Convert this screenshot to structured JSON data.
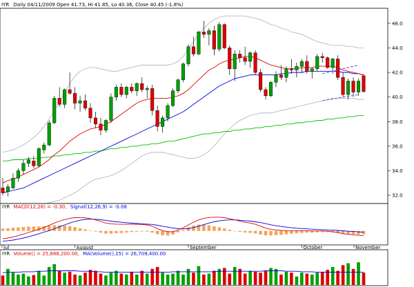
{
  "header": {
    "symbol": "IYR",
    "info": "Daily 04/11/2009 Open 41.73, Hi 41.85, Lo 40.36, Close 40.45 (-1.8%)"
  },
  "macd_legend": {
    "symbol": "IYR",
    "macd_text": "MACD(12,26) = -0.30,",
    "signal_text": "Signal(12,26,9) = -0.08"
  },
  "volume_legend": {
    "symbol": "IYR",
    "vol_text": "Volume() = 25,888,200.00,",
    "ma_text": "MA(Volume(),15) = 26,709,400.00"
  },
  "colors": {
    "up": "#00a000",
    "down": "#e00000",
    "ma_fast": "#e00000",
    "ma_mid": "#0000e0",
    "ma_slow": "#00c000",
    "band": "#b0b0b0",
    "macd_hist": "#f4a460",
    "trendline": "#6a5acd"
  },
  "chart_data": [
    {
      "type": "candlestick",
      "title": "",
      "ylim": [
        31.5,
        47.0
      ],
      "y_ticks": [
        "32.0",
        "34.0",
        "36.0",
        "38.0",
        "40.0",
        "42.0",
        "44.0",
        "46.0"
      ],
      "x_ticks": [
        "Jul",
        "August",
        "September",
        "October",
        "November"
      ],
      "x_tick_index": [
        0,
        14,
        36,
        58,
        80
      ],
      "candles": [
        [
          32.6,
          33.4,
          32.0,
          32.2
        ],
        [
          32.3,
          32.9,
          31.9,
          32.7
        ],
        [
          32.6,
          33.8,
          32.5,
          33.4
        ],
        [
          33.4,
          34.2,
          33.1,
          34.0
        ],
        [
          34.0,
          34.9,
          33.7,
          34.6
        ],
        [
          34.6,
          35.1,
          34.3,
          34.9
        ],
        [
          34.8,
          35.2,
          34.2,
          34.4
        ],
        [
          34.4,
          35.9,
          34.3,
          35.8
        ],
        [
          35.7,
          36.3,
          35.4,
          36.1
        ],
        [
          36.1,
          38.1,
          36.0,
          37.9
        ],
        [
          37.9,
          40.1,
          37.8,
          39.9
        ],
        [
          39.9,
          40.8,
          39.2,
          39.4
        ],
        [
          39.4,
          40.7,
          39.1,
          40.6
        ],
        [
          40.6,
          42.0,
          40.2,
          40.3
        ],
        [
          40.3,
          40.8,
          39.0,
          39.5
        ],
        [
          39.5,
          40.1,
          38.8,
          39.7
        ],
        [
          39.7,
          40.2,
          38.9,
          39.1
        ],
        [
          39.1,
          39.5,
          37.9,
          38.3
        ],
        [
          38.3,
          38.8,
          37.5,
          37.8
        ],
        [
          37.8,
          38.3,
          36.9,
          37.3
        ],
        [
          37.3,
          38.2,
          37.1,
          38.1
        ],
        [
          38.1,
          40.3,
          37.9,
          40.0
        ],
        [
          40.0,
          41.0,
          39.7,
          40.8
        ],
        [
          40.8,
          41.1,
          40.0,
          40.2
        ],
        [
          40.2,
          40.9,
          39.9,
          40.8
        ],
        [
          40.8,
          41.1,
          40.3,
          40.5
        ],
        [
          40.5,
          41.2,
          40.1,
          41.1
        ],
        [
          41.1,
          41.6,
          40.4,
          40.6
        ],
        [
          40.6,
          40.9,
          39.9,
          40.7
        ],
        [
          40.7,
          41.0,
          38.5,
          38.9
        ],
        [
          38.9,
          39.3,
          37.2,
          37.6
        ],
        [
          37.6,
          38.5,
          37.1,
          38.3
        ],
        [
          38.3,
          39.5,
          38.0,
          39.3
        ],
        [
          39.3,
          40.7,
          39.2,
          40.5
        ],
        [
          40.5,
          41.5,
          40.3,
          41.4
        ],
        [
          41.4,
          42.8,
          41.2,
          42.7
        ],
        [
          42.7,
          44.3,
          42.5,
          44.1
        ],
        [
          44.1,
          44.9,
          43.3,
          43.5
        ],
        [
          43.5,
          45.4,
          43.4,
          45.3
        ],
        [
          45.3,
          46.2,
          44.8,
          45.1
        ],
        [
          45.1,
          45.6,
          44.2,
          45.4
        ],
        [
          45.4,
          45.8,
          43.4,
          43.9
        ],
        [
          43.9,
          46.1,
          43.7,
          45.9
        ],
        [
          45.9,
          46.0,
          43.9,
          44.0
        ],
        [
          44.0,
          44.2,
          41.8,
          42.3
        ],
        [
          42.3,
          43.8,
          41.3,
          43.5
        ],
        [
          43.5,
          43.8,
          42.8,
          43.2
        ],
        [
          43.2,
          44.1,
          42.6,
          42.9
        ],
        [
          42.9,
          43.7,
          42.4,
          43.6
        ],
        [
          43.6,
          43.8,
          41.8,
          42.0
        ],
        [
          42.0,
          42.3,
          40.4,
          40.6
        ],
        [
          40.6,
          40.8,
          39.8,
          40.1
        ],
        [
          40.1,
          41.3,
          40.0,
          41.2
        ],
        [
          41.2,
          42.1,
          40.8,
          41.8
        ],
        [
          41.8,
          42.6,
          41.4,
          41.6
        ],
        [
          41.6,
          42.5,
          41.2,
          42.3
        ],
        [
          42.3,
          43.1,
          41.9,
          42.2
        ],
        [
          42.2,
          42.8,
          41.6,
          42.5
        ],
        [
          42.5,
          43.1,
          42.0,
          42.9
        ],
        [
          42.9,
          43.4,
          41.9,
          42.1
        ],
        [
          42.1,
          42.4,
          41.5,
          42.3
        ],
        [
          42.3,
          43.5,
          42.1,
          43.3
        ],
        [
          43.3,
          43.6,
          42.8,
          43.2
        ],
        [
          43.2,
          43.3,
          42.3,
          42.4
        ],
        [
          42.4,
          43.2,
          41.9,
          43.1
        ],
        [
          43.1,
          43.4,
          41.4,
          41.6
        ],
        [
          41.6,
          42.0,
          40.0,
          40.2
        ],
        [
          40.2,
          41.5,
          39.8,
          41.3
        ],
        [
          41.3,
          41.6,
          40.0,
          40.4
        ],
        [
          40.4,
          41.5,
          40.1,
          41.3
        ],
        [
          41.73,
          41.85,
          40.36,
          40.45
        ]
      ],
      "trendline_upper": [
        [
          62,
          41.9
        ],
        [
          69,
          42.6
        ]
      ],
      "trendline_lower": [
        [
          62,
          39.7
        ],
        [
          69,
          40.2
        ]
      ],
      "ma_fast": [
        33.0,
        33.2,
        33.3,
        33.5,
        33.7,
        33.9,
        34.1,
        34.3,
        34.6,
        34.9,
        35.3,
        35.6,
        36.0,
        36.4,
        36.7,
        37.0,
        37.2,
        37.4,
        37.5,
        37.6,
        37.8,
        38.0,
        38.3,
        38.6,
        38.9,
        39.2,
        39.5,
        39.7,
        39.8,
        39.9,
        39.9,
        39.9,
        39.9,
        40.0,
        40.1,
        40.3,
        40.6,
        41.0,
        41.4,
        41.8,
        42.2,
        42.4,
        42.7,
        42.9,
        43.0,
        43.1,
        43.2,
        43.3,
        43.3,
        43.2,
        43.0,
        42.8,
        42.6,
        42.5,
        42.4,
        42.3,
        42.3,
        42.3,
        42.4,
        42.4,
        42.4,
        42.5,
        42.5,
        42.5,
        42.5,
        42.4,
        42.2,
        42.1,
        42.0,
        41.9,
        41.8
      ],
      "ma_mid": [
        32.2,
        32.3,
        32.4,
        32.5,
        32.6,
        32.8,
        33.0,
        33.2,
        33.4,
        33.6,
        33.8,
        34.0,
        34.2,
        34.4,
        34.6,
        34.8,
        35.0,
        35.2,
        35.4,
        35.6,
        35.8,
        36.0,
        36.2,
        36.4,
        36.6,
        36.8,
        37.0,
        37.2,
        37.4,
        37.6,
        37.8,
        38.0,
        38.2,
        38.4,
        38.6,
        38.8,
        39.1,
        39.4,
        39.7,
        40.0,
        40.3,
        40.6,
        40.9,
        41.1,
        41.3,
        41.5,
        41.6,
        41.7,
        41.8,
        41.8,
        41.8,
        41.8,
        41.8,
        41.8,
        41.9,
        41.9,
        42.0,
        42.0,
        42.0,
        42.1,
        42.1,
        42.1,
        42.1,
        42.1,
        42.1,
        42.1,
        42.0,
        42.0,
        41.9,
        41.9,
        41.8
      ],
      "ma_slow": [
        34.8,
        34.8,
        34.9,
        34.9,
        34.9,
        35.0,
        35.0,
        35.0,
        35.1,
        35.1,
        35.2,
        35.2,
        35.3,
        35.3,
        35.4,
        35.4,
        35.5,
        35.5,
        35.6,
        35.6,
        35.7,
        35.8,
        35.8,
        35.9,
        35.9,
        36.0,
        36.0,
        36.1,
        36.1,
        36.2,
        36.2,
        36.3,
        36.4,
        36.4,
        36.5,
        36.6,
        36.7,
        36.8,
        36.9,
        37.0,
        37.0,
        37.1,
        37.1,
        37.2,
        37.2,
        37.3,
        37.3,
        37.4,
        37.4,
        37.5,
        37.5,
        37.6,
        37.6,
        37.7,
        37.7,
        37.8,
        37.8,
        37.9,
        37.9,
        38.0,
        38.0,
        38.1,
        38.1,
        38.2,
        38.2,
        38.3,
        38.3,
        38.4,
        38.4,
        38.5,
        38.5
      ],
      "band_upper": [
        35.5,
        35.6,
        35.7,
        35.9,
        36.1,
        36.4,
        36.7,
        37.1,
        37.6,
        38.2,
        38.9,
        39.6,
        40.4,
        41.1,
        41.7,
        42.1,
        42.3,
        42.4,
        42.4,
        42.3,
        42.2,
        42.1,
        42.1,
        42.2,
        42.3,
        42.4,
        42.5,
        42.6,
        42.6,
        42.6,
        42.6,
        42.6,
        42.6,
        42.7,
        42.9,
        43.3,
        43.9,
        44.5,
        45.1,
        45.6,
        46.0,
        46.3,
        46.5,
        46.6,
        46.6,
        46.6,
        46.6,
        46.6,
        46.5,
        46.4,
        46.3,
        46.1,
        45.9,
        45.8,
        45.6,
        45.5,
        45.3,
        45.2,
        45.1,
        44.9,
        44.7,
        44.5,
        44.4,
        44.3,
        44.2,
        44.2,
        44.2,
        44.1,
        44.1,
        44.0,
        44.0
      ],
      "band_lower": [
        30.4,
        30.6,
        30.7,
        30.8,
        30.9,
        31.0,
        31.1,
        31.2,
        31.3,
        31.4,
        31.5,
        31.6,
        31.8,
        32.0,
        32.2,
        32.5,
        32.8,
        33.1,
        33.3,
        33.4,
        33.5,
        33.6,
        33.8,
        34.0,
        34.3,
        34.6,
        34.9,
        35.2,
        35.4,
        35.5,
        35.5,
        35.5,
        35.4,
        35.3,
        35.2,
        35.1,
        35.0,
        35.0,
        35.1,
        35.3,
        35.6,
        36.0,
        36.5,
        37.0,
        37.4,
        37.8,
        38.1,
        38.3,
        38.5,
        38.6,
        38.7,
        38.7,
        38.7,
        38.8,
        38.9,
        39.0,
        39.1,
        39.2,
        39.3,
        39.4,
        39.5,
        39.6,
        39.7,
        39.8,
        39.9,
        39.9,
        39.9,
        39.9,
        39.9,
        39.8,
        39.8
      ]
    },
    {
      "type": "line",
      "title": "MACD(12,26)",
      "ylim": [
        -0.8,
        1.3
      ],
      "series": [
        {
          "name": "MACD(12,26)",
          "values": [
            -0.5,
            -0.45,
            -0.38,
            -0.3,
            -0.2,
            -0.1,
            0.0,
            0.1,
            0.22,
            0.35,
            0.5,
            0.62,
            0.72,
            0.8,
            0.84,
            0.85,
            0.83,
            0.78,
            0.7,
            0.6,
            0.5,
            0.45,
            0.43,
            0.42,
            0.42,
            0.42,
            0.42,
            0.41,
            0.38,
            0.3,
            0.15,
            0.02,
            -0.05,
            -0.05,
            0.05,
            0.2,
            0.38,
            0.55,
            0.7,
            0.8,
            0.85,
            0.87,
            0.87,
            0.84,
            0.78,
            0.7,
            0.62,
            0.55,
            0.5,
            0.42,
            0.3,
            0.18,
            0.1,
            0.06,
            0.03,
            0.02,
            0.02,
            0.02,
            0.02,
            0.02,
            0.0,
            0.0,
            0.0,
            -0.02,
            -0.05,
            -0.1,
            -0.18,
            -0.22,
            -0.25,
            -0.28,
            -0.3
          ]
        },
        {
          "name": "Signal(12,26,9)",
          "values": [
            -0.65,
            -0.62,
            -0.58,
            -0.52,
            -0.45,
            -0.37,
            -0.28,
            -0.18,
            -0.08,
            0.02,
            0.14,
            0.26,
            0.38,
            0.5,
            0.6,
            0.68,
            0.73,
            0.75,
            0.74,
            0.71,
            0.67,
            0.62,
            0.58,
            0.55,
            0.52,
            0.49,
            0.47,
            0.45,
            0.43,
            0.41,
            0.36,
            0.3,
            0.24,
            0.18,
            0.14,
            0.13,
            0.15,
            0.21,
            0.3,
            0.4,
            0.5,
            0.58,
            0.64,
            0.68,
            0.7,
            0.7,
            0.68,
            0.65,
            0.62,
            0.58,
            0.53,
            0.46,
            0.39,
            0.33,
            0.28,
            0.24,
            0.2,
            0.17,
            0.15,
            0.13,
            0.11,
            0.09,
            0.08,
            0.06,
            0.05,
            0.03,
            0.01,
            -0.02,
            -0.04,
            -0.06,
            -0.08
          ]
        }
      ],
      "histogram": [
        0.15,
        0.17,
        0.2,
        0.22,
        0.25,
        0.27,
        0.28,
        0.28,
        0.3,
        0.33,
        0.36,
        0.36,
        0.34,
        0.3,
        0.24,
        0.17,
        0.1,
        0.03,
        -0.04,
        -0.11,
        -0.17,
        -0.17,
        -0.15,
        -0.13,
        -0.1,
        -0.07,
        -0.05,
        -0.04,
        -0.05,
        -0.11,
        -0.21,
        -0.28,
        -0.29,
        -0.23,
        -0.09,
        0.07,
        0.23,
        0.34,
        0.4,
        0.4,
        0.35,
        0.29,
        0.23,
        0.16,
        0.08,
        0.0,
        -0.06,
        -0.1,
        -0.12,
        -0.16,
        -0.23,
        -0.28,
        -0.29,
        -0.27,
        -0.25,
        -0.22,
        -0.18,
        -0.15,
        -0.13,
        -0.11,
        -0.11,
        -0.09,
        -0.08,
        -0.08,
        -0.1,
        -0.13,
        -0.19,
        -0.2,
        -0.21,
        -0.22,
        -0.22
      ],
      "x_ticks": [
        "Jul",
        "August",
        "September",
        "October",
        "November"
      ],
      "x_tick_index": [
        0,
        14,
        36,
        58,
        80
      ]
    },
    {
      "type": "bar",
      "title": "Volume()",
      "ylim": [
        0,
        60
      ],
      "volume_millions": [
        20,
        34,
        26,
        22,
        24,
        18,
        21,
        30,
        20,
        38,
        44,
        30,
        26,
        28,
        22,
        20,
        26,
        32,
        30,
        24,
        20,
        26,
        30,
        24,
        22,
        28,
        22,
        30,
        24,
        34,
        38,
        26,
        22,
        24,
        30,
        22,
        34,
        26,
        40,
        22,
        24,
        30,
        34,
        36,
        24,
        38,
        34,
        24,
        30,
        28,
        26,
        30,
        36,
        34,
        22,
        28,
        26,
        18,
        26,
        24,
        22,
        26,
        28,
        32,
        38,
        30,
        42,
        46,
        34,
        48,
        26
      ],
      "ma": [
        26,
        27,
        27,
        27,
        28,
        28,
        28,
        29,
        29,
        30,
        30,
        30,
        30,
        30,
        30,
        29,
        29,
        29,
        28,
        28,
        27,
        27,
        27,
        27,
        27,
        27,
        27,
        27,
        27,
        27,
        27,
        27,
        27,
        28,
        28,
        28,
        28,
        28,
        28,
        28,
        28,
        28,
        29,
        29,
        29,
        29,
        29,
        29,
        29,
        29,
        29,
        30,
        30,
        30,
        30,
        29,
        29,
        29,
        28,
        28,
        28,
        27,
        27,
        27,
        27,
        27,
        27,
        27,
        27,
        27,
        27
      ]
    }
  ]
}
